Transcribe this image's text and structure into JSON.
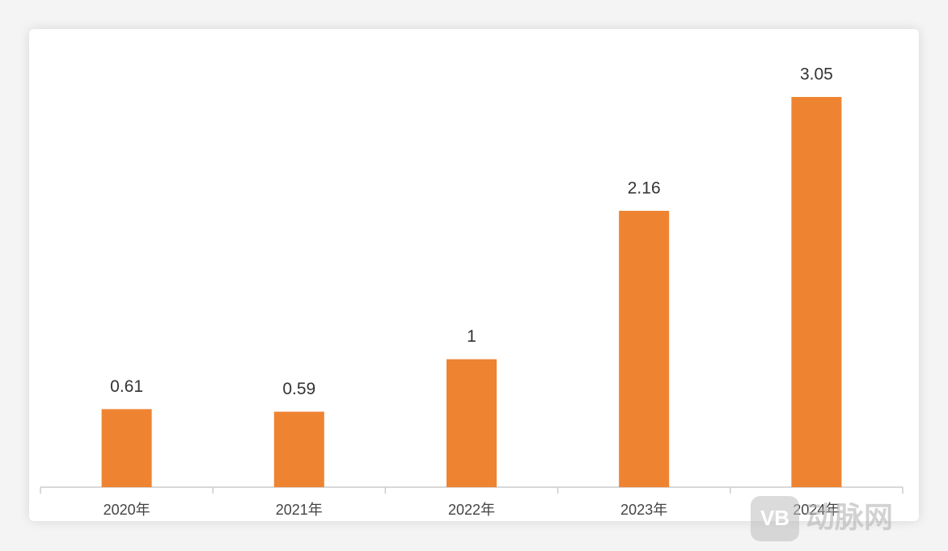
{
  "chart_data": {
    "type": "bar",
    "categories": [
      "2020年",
      "2021年",
      "2022年",
      "2023年",
      "2024年"
    ],
    "values": [
      0.61,
      0.59,
      1,
      2.16,
      3.05
    ],
    "color": "#ee8432"
  },
  "watermark": {
    "logo": "VB",
    "text": "动脉网"
  }
}
